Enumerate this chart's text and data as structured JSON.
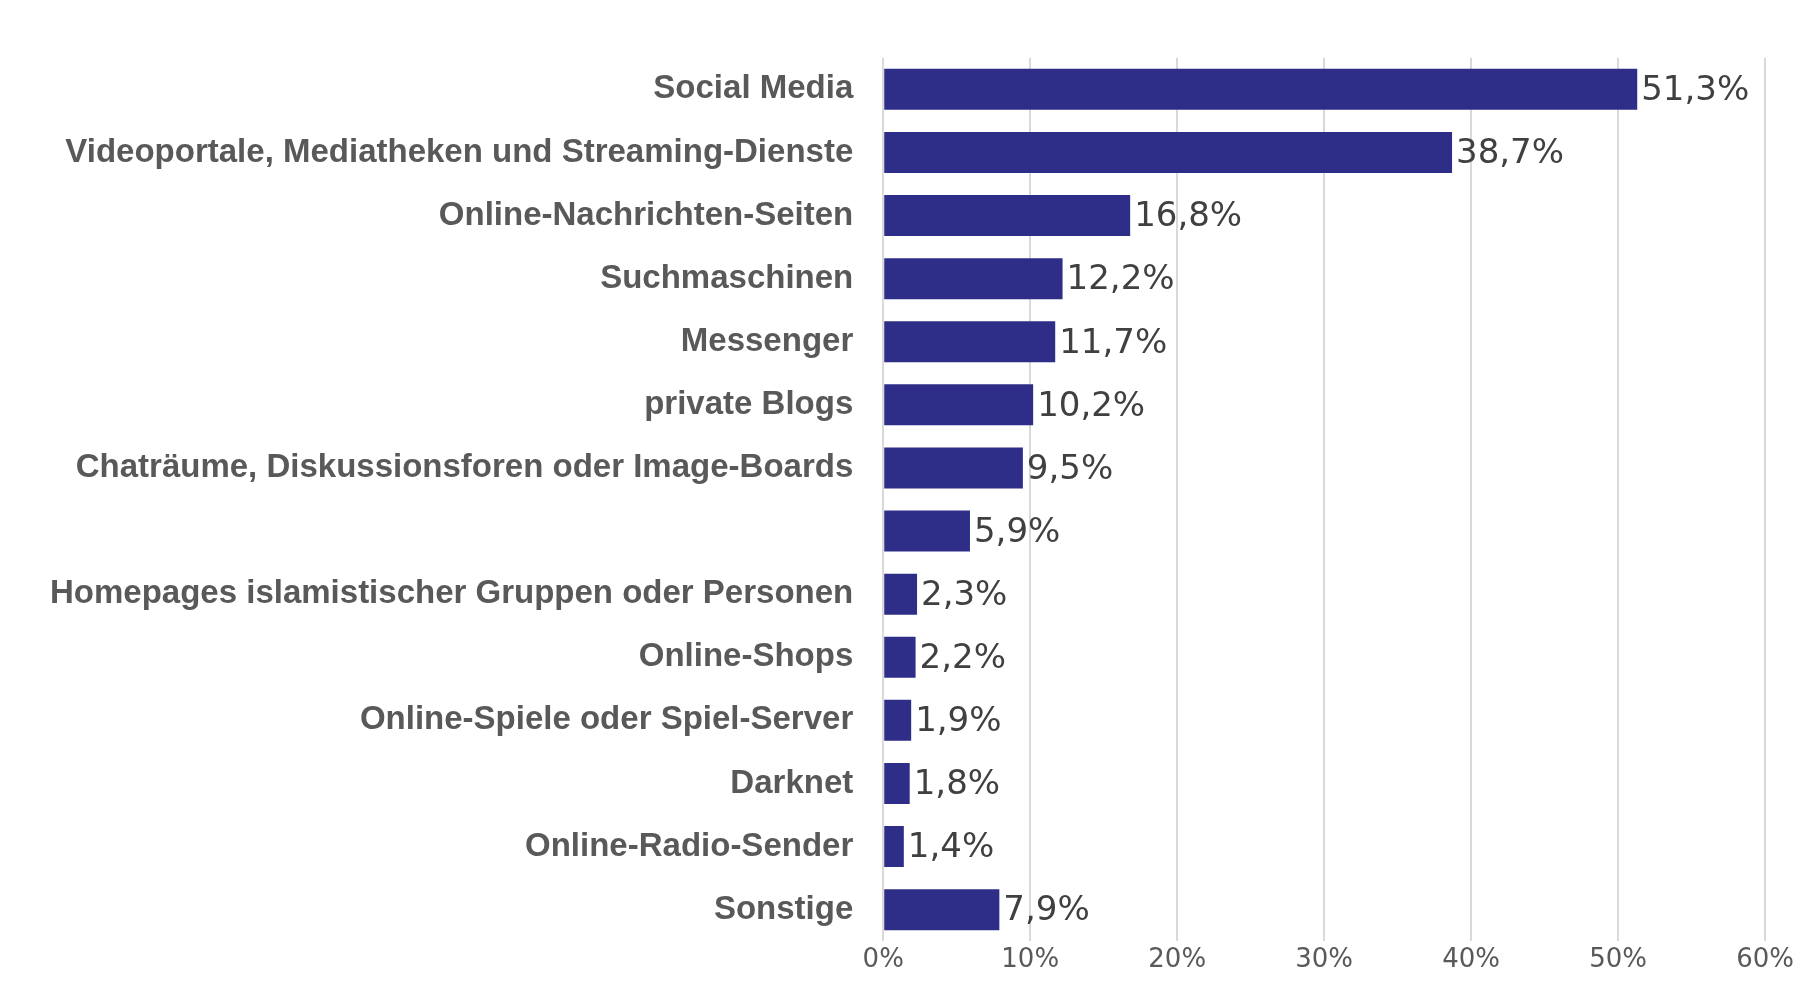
{
  "chart_data": {
    "type": "bar",
    "orientation": "horizontal",
    "categories": [
      "Social Media",
      "Videoportale, Mediatheken und Streaming-Dienste",
      "Online-Nachrichten-Seiten",
      "Suchmaschinen",
      "Messenger",
      "private Blogs",
      "Chaträume, Diskussionsforen oder Image-Boards",
      null,
      "Homepages islamistischer Gruppen oder Personen",
      "Online-Shops",
      "Online-Spiele oder Spiel-Server",
      "Darknet",
      "Online-Radio-Sender",
      "Sonstige"
    ],
    "values": [
      51.3,
      38.7,
      16.8,
      12.2,
      11.7,
      10.2,
      9.5,
      5.9,
      2.3,
      2.2,
      1.9,
      1.8,
      1.4,
      7.9
    ],
    "value_labels": [
      "51,3%",
      "38,7%",
      "16,8%",
      "12,2%",
      "11,7%",
      "10,2%",
      "9,5%",
      "5,9%",
      "2,3%",
      "2,2%",
      "1,9%",
      "1,8%",
      "1,4%",
      "7,9%"
    ],
    "color": "#2e2d88",
    "xlim": [
      0,
      60
    ],
    "xticks": [
      {
        "value": 0,
        "label": "0%"
      },
      {
        "value": 10,
        "label": "10%"
      },
      {
        "value": 20,
        "label": "20%"
      },
      {
        "value": 30,
        "label": "30%"
      },
      {
        "value": 40,
        "label": "40%"
      },
      {
        "value": 50,
        "label": "50%"
      },
      {
        "value": 60,
        "label": "60%"
      }
    ],
    "grid": "x",
    "legend": false
  }
}
